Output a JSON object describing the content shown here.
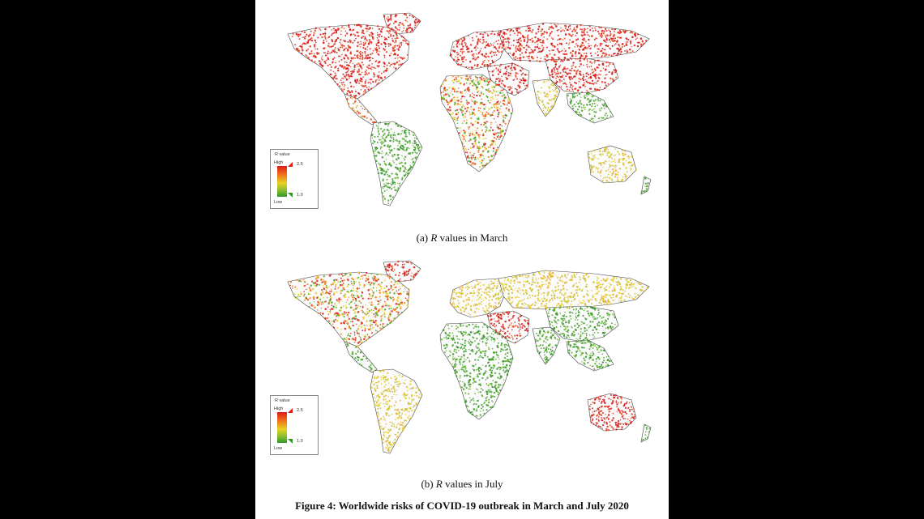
{
  "panel_a": {
    "caption_prefix": "(a)",
    "caption_var": "R",
    "caption_rest": "values in March",
    "legend": {
      "title": "R value",
      "high": "High",
      "low": "Low",
      "max": "2.5",
      "min": "1.0"
    }
  },
  "panel_b": {
    "caption_prefix": "(b)",
    "caption_var": "R",
    "caption_rest": "values in July",
    "legend": {
      "title": "R value",
      "high": "High",
      "low": "Low",
      "max": "2.5",
      "min": "1.0"
    }
  },
  "figure_title": "Figure 4: Worldwide risks of COVID-19 outbreak in March and July 2020",
  "colors": {
    "high": "#e01a1a",
    "mid": "#e8d020",
    "low": "#2f9a2a"
  },
  "regions": {
    "march": [
      {
        "name": "North America",
        "level": "high"
      },
      {
        "name": "Central America",
        "level": "mid-high"
      },
      {
        "name": "South America",
        "level": "low"
      },
      {
        "name": "Europe",
        "level": "high"
      },
      {
        "name": "Russia",
        "level": "high"
      },
      {
        "name": "Middle East",
        "level": "high"
      },
      {
        "name": "Africa",
        "level": "mixed"
      },
      {
        "name": "India",
        "level": "mid"
      },
      {
        "name": "East Asia",
        "level": "high"
      },
      {
        "name": "Southeast Asia",
        "level": "low"
      },
      {
        "name": "Australia",
        "level": "mid"
      }
    ],
    "july": [
      {
        "name": "North America",
        "level": "mixed"
      },
      {
        "name": "Central America",
        "level": "low"
      },
      {
        "name": "South America",
        "level": "mid"
      },
      {
        "name": "Europe",
        "level": "mid"
      },
      {
        "name": "Russia",
        "level": "mid"
      },
      {
        "name": "Middle East",
        "level": "high"
      },
      {
        "name": "Africa",
        "level": "low"
      },
      {
        "name": "India",
        "level": "low"
      },
      {
        "name": "East Asia",
        "level": "low"
      },
      {
        "name": "Southeast Asia",
        "level": "low"
      },
      {
        "name": "Australia",
        "level": "high"
      }
    ]
  }
}
